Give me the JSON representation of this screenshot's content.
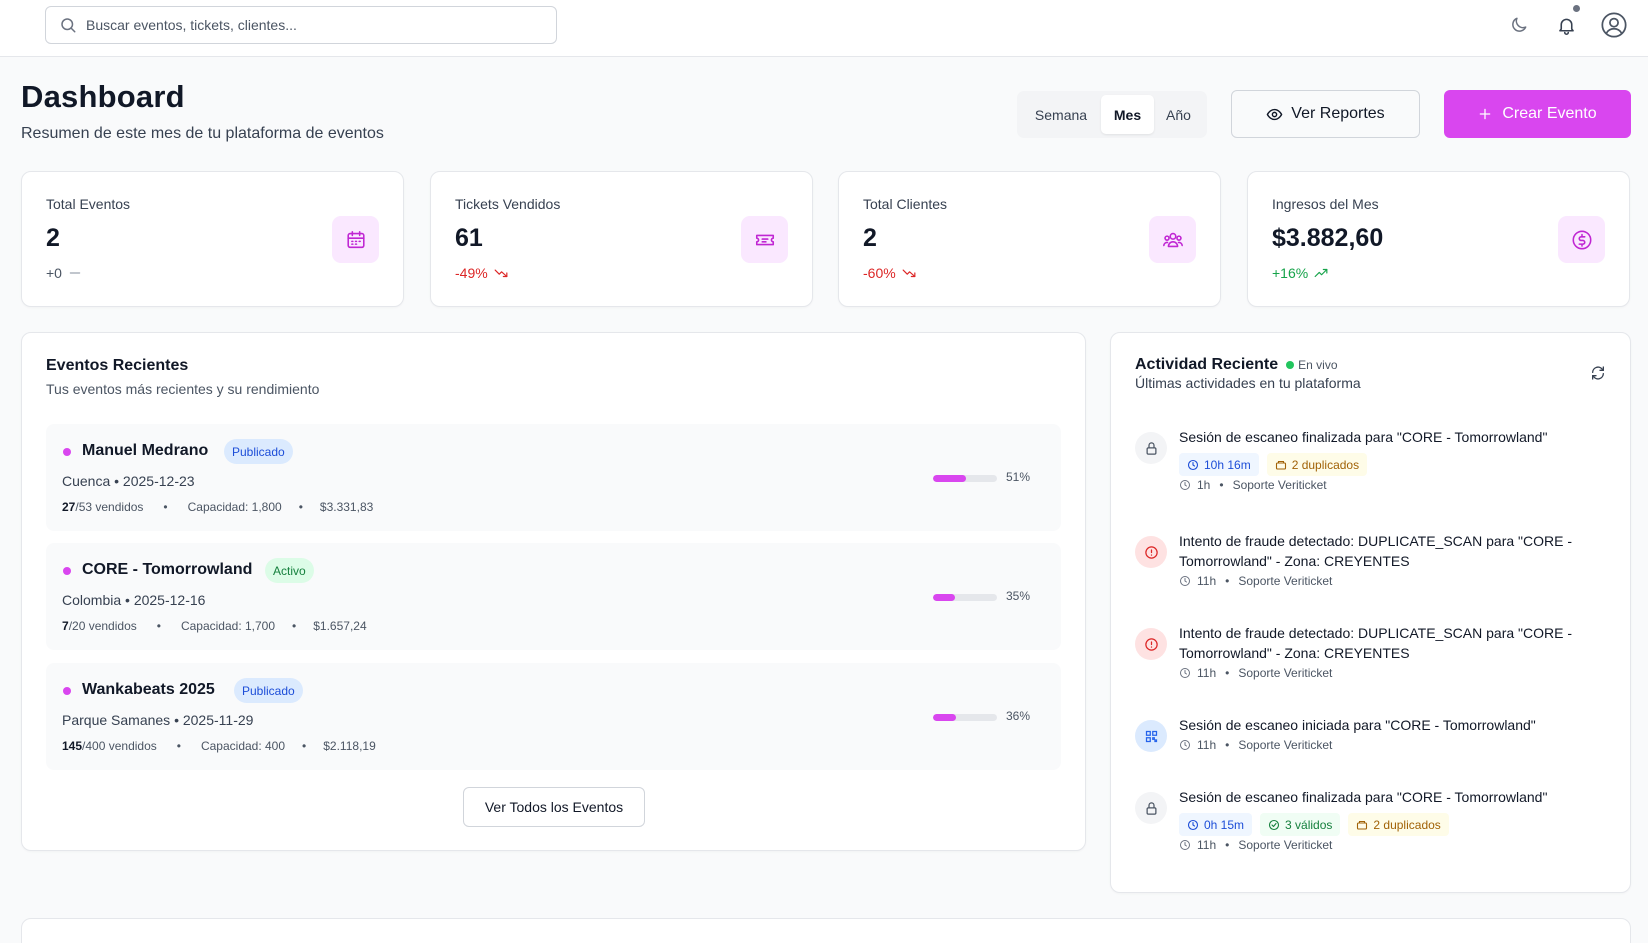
{
  "search": {
    "placeholder": "Buscar eventos, tickets, clientes..."
  },
  "header": {
    "title": "Dashboard",
    "subtitle": "Resumen de este mes de tu plataforma de eventos",
    "periods": [
      "Semana",
      "Mes",
      "Año"
    ],
    "active_period": "Mes",
    "reports_label": "Ver Reportes",
    "create_label": "Crear Evento"
  },
  "stats": [
    {
      "label": "Total Eventos",
      "value": "2",
      "change": "+0",
      "trend": "neutral",
      "icon": "calendar-icon"
    },
    {
      "label": "Tickets Vendidos",
      "value": "61",
      "change": "-49%",
      "trend": "down",
      "icon": "ticket-icon"
    },
    {
      "label": "Total Clientes",
      "value": "2",
      "change": "-60%",
      "trend": "down",
      "icon": "users-icon"
    },
    {
      "label": "Ingresos del Mes",
      "value": "$3.882,60",
      "change": "+16%",
      "trend": "up",
      "icon": "dollar-icon"
    }
  ],
  "recent_events": {
    "title": "Eventos Recientes",
    "subtitle": "Tus eventos más recientes y su rendimiento",
    "items": [
      {
        "name": "Manuel Medrano",
        "status": "Publicado",
        "location": "Cuenca • 2025-12-23",
        "sold": "27",
        "total": "/53 vendidos",
        "capacity": "Capacidad: 1,800",
        "revenue": "$3.331,83",
        "percent_label": "51%",
        "percent": 51
      },
      {
        "name": "CORE - Tomorrowland",
        "status": "Activo",
        "location": "Colombia • 2025-12-16",
        "sold": "7",
        "total": "/20 vendidos",
        "capacity": "Capacidad: 1,700",
        "revenue": "$1.657,24",
        "percent_label": "35%",
        "percent": 35
      },
      {
        "name": "Wankabeats 2025",
        "status": "Publicado",
        "location": "Parque Samanes • 2025-11-29",
        "sold": "145",
        "total": "/400 vendidos",
        "capacity": "Capacidad: 400",
        "revenue": "$2.118,19",
        "percent_label": "36%",
        "percent": 36
      }
    ],
    "view_all_label": "Ver Todos los Eventos"
  },
  "activity": {
    "title": "Actividad Reciente",
    "live_label": "En vivo",
    "subtitle": "Últimas actividades en tu plataforma",
    "bullet": "•",
    "items": [
      {
        "text": "Sesión de escaneo finalizada para \"CORE - Tomorrowland\"",
        "icon": "lock-icon",
        "chips": [
          {
            "label": "10h 16m",
            "kind": "duration"
          },
          {
            "label": "2 duplicados",
            "kind": "duplicates"
          }
        ],
        "time": "1h",
        "user": "Soporte Veriticket"
      },
      {
        "text": "Intento de fraude detectado: DUPLICATE_SCAN para \"CORE - Tomorrowland\" - Zona: CREYENTES",
        "icon": "alert-icon",
        "chips": [],
        "time": "11h",
        "user": "Soporte Veriticket"
      },
      {
        "text": "Intento de fraude detectado: DUPLICATE_SCAN para \"CORE - Tomorrowland\" - Zona: CREYENTES",
        "icon": "alert-icon",
        "chips": [],
        "time": "11h",
        "user": "Soporte Veriticket"
      },
      {
        "text": "Sesión de escaneo iniciada para \"CORE - Tomorrowland\"",
        "icon": "qr-icon",
        "chips": [],
        "time": "11h",
        "user": "Soporte Veriticket"
      },
      {
        "text": "Sesión de escaneo finalizada para \"CORE - Tomorrowland\"",
        "icon": "lock-icon",
        "chips": [
          {
            "label": "0h 15m",
            "kind": "duration"
          },
          {
            "label": "3 válidos",
            "kind": "valid"
          },
          {
            "label": "2 duplicados",
            "kind": "duplicates"
          }
        ],
        "time": "11h",
        "user": "Soporte Veriticket"
      }
    ]
  },
  "colors": {
    "accent": "#d946ef",
    "accent_light": "#fae8ff",
    "negative": "#dc2626",
    "positive": "#16a34a",
    "live": "#22c55e"
  }
}
